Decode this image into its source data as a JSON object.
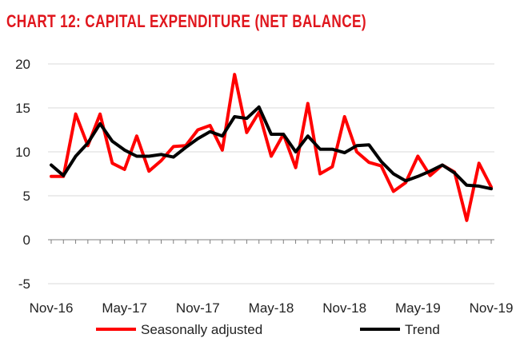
{
  "chart_data": {
    "type": "line",
    "title": "CHART 12: CAPITAL EXPENDITURE (NET BALANCE)",
    "title_color": "#e0161d",
    "xlabel": "",
    "ylabel": "",
    "ylim": [
      -5,
      20
    ],
    "yticks": [
      -5,
      0,
      5,
      10,
      15,
      20
    ],
    "grid": true,
    "legend_position": "bottom",
    "x_tick_labels": [
      "Nov-16",
      "May-17",
      "Nov-17",
      "May-18",
      "Nov-18",
      "May-19",
      "Nov-19"
    ],
    "x_tick_indices": [
      0,
      6,
      12,
      18,
      24,
      30,
      36
    ],
    "n_points": 37,
    "series": [
      {
        "name": "Seasonally adjusted",
        "color": "#ff0000",
        "values": [
          7.2,
          7.2,
          14.3,
          10.7,
          14.3,
          8.7,
          8.0,
          11.8,
          7.8,
          9.0,
          10.6,
          10.7,
          12.5,
          13.0,
          10.2,
          18.8,
          12.2,
          14.5,
          9.5,
          12.0,
          8.2,
          15.5,
          7.5,
          8.3,
          14.0,
          10.0,
          8.8,
          8.4,
          5.5,
          6.5,
          9.5,
          7.3,
          8.5,
          7.7,
          2.2,
          8.7,
          6.0
        ]
      },
      {
        "name": "Trend",
        "color": "#000000",
        "values": [
          8.5,
          7.3,
          9.5,
          11.0,
          13.2,
          11.2,
          10.2,
          9.5,
          9.5,
          9.7,
          9.4,
          10.5,
          11.5,
          12.3,
          11.8,
          14.0,
          13.8,
          15.1,
          12.0,
          12.0,
          10.0,
          11.8,
          10.3,
          10.3,
          9.9,
          10.7,
          10.8,
          8.9,
          7.5,
          6.7,
          7.2,
          7.8,
          8.5,
          7.6,
          6.2,
          6.1,
          5.8
        ]
      }
    ]
  }
}
